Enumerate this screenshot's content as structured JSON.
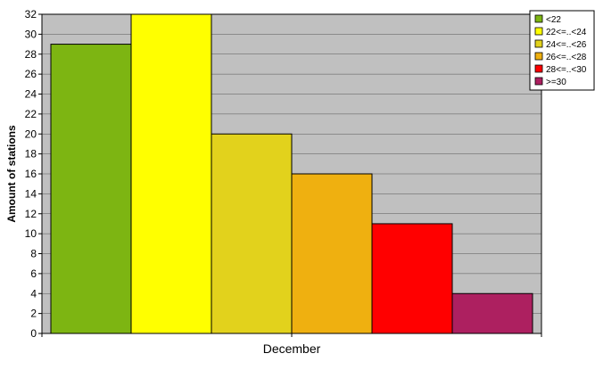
{
  "chart_data": {
    "type": "bar",
    "categories": [
      "December"
    ],
    "series": [
      {
        "name": "<22",
        "values": [
          29
        ],
        "color": "#7db512"
      },
      {
        "name": "22<=..<24",
        "values": [
          32
        ],
        "color": "#ffff00"
      },
      {
        "name": "24<=..<26",
        "values": [
          20
        ],
        "color": "#e2d21c"
      },
      {
        "name": "26<=..<28",
        "values": [
          16
        ],
        "color": "#efb010"
      },
      {
        "name": "28<=..<30",
        "values": [
          11
        ],
        "color": "#ff0000"
      },
      {
        "name": ">=30",
        "values": [
          4
        ],
        "color": "#ad2060"
      }
    ],
    "ylabel": "Amount of stations",
    "ylim": [
      0,
      32
    ],
    "yticks": [
      0,
      2,
      4,
      6,
      8,
      10,
      12,
      14,
      16,
      18,
      20,
      22,
      24,
      26,
      28,
      30,
      32
    ],
    "grid": true,
    "plot_background": "#c0c0c0",
    "legend_position": "top-right"
  }
}
